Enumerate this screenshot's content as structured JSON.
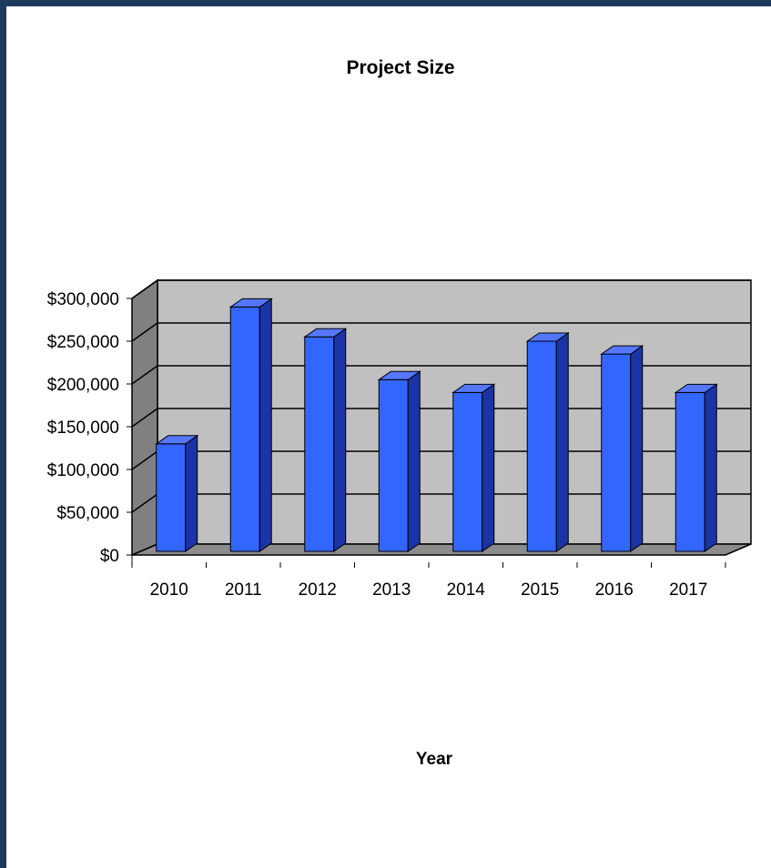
{
  "chart_data": {
    "type": "bar",
    "title": "Project Size",
    "xlabel": "Year",
    "ylabel": "",
    "categories": [
      "2010",
      "2011",
      "2012",
      "2013",
      "2014",
      "2015",
      "2016",
      "2017"
    ],
    "values": [
      130000,
      290000,
      255000,
      205000,
      190000,
      250000,
      235000,
      190000
    ],
    "ylim": [
      0,
      300000
    ],
    "yticks": [
      0,
      50000,
      100000,
      150000,
      200000,
      250000,
      300000
    ],
    "ytick_labels": [
      "$0",
      "$50,000",
      "$100,000",
      "$150,000",
      "$200,000",
      "$250,000",
      "$300,000"
    ],
    "grid": true,
    "legend": "none",
    "three_d": true,
    "colors": {
      "bar_front": "#3366ff",
      "bar_side": "#1a33a6",
      "bar_top": "#5577ff",
      "wall": "#c0c0c0",
      "side_wall": "#808080",
      "floor": "#8c8c8c",
      "frame_border": "#1b3a5c"
    }
  }
}
